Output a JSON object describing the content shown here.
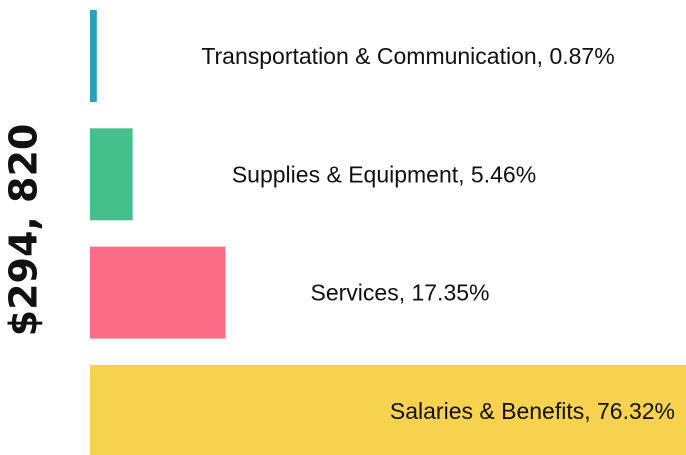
{
  "chart_data": {
    "type": "bar",
    "orientation": "horizontal",
    "title": "$294, 820",
    "values": [
      0.87,
      5.46,
      17.35,
      76.32
    ],
    "value_labels": [
      "Transportation & Communication, 0.87%",
      "Supplies & Equipment, 5.46%",
      "Services, 17.35%",
      "Salaries & Benefits, 76.32%"
    ],
    "colors": [
      "#2a9fc0",
      "#45c08d",
      "#fe6d87",
      "#f7d24f"
    ],
    "xlim": [
      0,
      76.32
    ]
  }
}
